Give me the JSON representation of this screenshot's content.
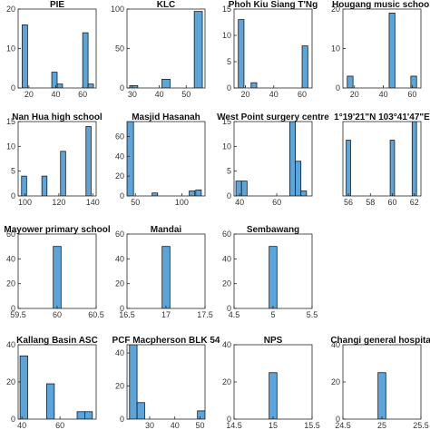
{
  "style": {
    "bar_fill": "#5aa5dc",
    "bar_stroke": "#1a1a1a",
    "axis_color": "#262626"
  },
  "chart_data": [
    {
      "type": "bar",
      "title": "PIE",
      "xlim": [
        12,
        70
      ],
      "ylim": [
        0,
        20
      ],
      "xticks": [
        "20",
        "40",
        "60"
      ],
      "xtick_values": [
        20,
        40,
        60
      ],
      "yticks": [
        "0",
        "10",
        "20"
      ],
      "ytick_values": [
        0,
        10,
        20
      ],
      "bins": [
        [
          15,
          19,
          16
        ],
        [
          37,
          41,
          4
        ],
        [
          41,
          45,
          1
        ],
        [
          60,
          64,
          14
        ],
        [
          64,
          68,
          1
        ]
      ]
    },
    {
      "type": "bar",
      "title": "KLC",
      "xlim": [
        28,
        57
      ],
      "ylim": [
        0,
        100
      ],
      "xticks": [
        "30",
        "40",
        "50"
      ],
      "xtick_values": [
        30,
        40,
        50
      ],
      "yticks": [
        "0",
        "50",
        "100"
      ],
      "ytick_values": [
        0,
        50,
        100
      ],
      "bins": [
        [
          29,
          32,
          3
        ],
        [
          41,
          44,
          11
        ],
        [
          53,
          56,
          97
        ]
      ]
    },
    {
      "type": "bar",
      "title": "Phoh Kiu Siang T'Ng",
      "xlim": [
        12,
        67
      ],
      "ylim": [
        0,
        15
      ],
      "xticks": [
        "20",
        "40",
        "60"
      ],
      "xtick_values": [
        20,
        40,
        60
      ],
      "yticks": [
        "0",
        "5",
        "10",
        "15"
      ],
      "ytick_values": [
        0,
        5,
        10,
        15
      ],
      "bins": [
        [
          15,
          19,
          13
        ],
        [
          24,
          28,
          1
        ],
        [
          60,
          64,
          8
        ]
      ]
    },
    {
      "type": "bar",
      "title": "Hougang music school",
      "xlim": [
        12,
        66
      ],
      "ylim": [
        0,
        20
      ],
      "xticks": [
        "20",
        "40",
        "60"
      ],
      "xtick_values": [
        20,
        40,
        60
      ],
      "yticks": [
        "0",
        "10",
        "20"
      ],
      "ytick_values": [
        0,
        10,
        20
      ],
      "bins": [
        [
          15,
          19,
          3
        ],
        [
          44,
          48,
          19
        ],
        [
          59,
          63,
          3
        ]
      ]
    },
    {
      "type": "bar",
      "title": "Nan Hua high school",
      "xlim": [
        96,
        142
      ],
      "ylim": [
        0,
        15
      ],
      "xticks": [
        "100",
        "120",
        "140"
      ],
      "xtick_values": [
        100,
        120,
        140
      ],
      "yticks": [
        "0",
        "5",
        "10",
        "15"
      ],
      "ytick_values": [
        0,
        5,
        10,
        15
      ],
      "bins": [
        [
          98,
          101,
          4
        ],
        [
          110,
          113,
          4
        ],
        [
          121,
          124,
          9
        ],
        [
          136,
          139,
          14
        ]
      ]
    },
    {
      "type": "bar",
      "title": "Masjid Hasanah",
      "xlim": [
        41,
        125
      ],
      "ylim": [
        0,
        75
      ],
      "xticks": [
        "50",
        "100"
      ],
      "xtick_values": [
        50,
        100
      ],
      "yticks": [
        "0",
        "20",
        "40",
        "60"
      ],
      "ytick_values": [
        0,
        20,
        40,
        60
      ],
      "bins": [
        [
          41,
          48,
          75
        ],
        [
          68,
          74,
          3
        ],
        [
          108,
          114,
          5
        ],
        [
          115,
          121,
          6
        ]
      ]
    },
    {
      "type": "bar",
      "title": "West Point surgery centre",
      "xlim": [
        37,
        79
      ],
      "ylim": [
        0,
        15
      ],
      "xticks": [
        "40",
        "60"
      ],
      "xtick_values": [
        40,
        60
      ],
      "yticks": [
        "0",
        "5",
        "10",
        "15"
      ],
      "ytick_values": [
        0,
        5,
        10,
        15
      ],
      "bins": [
        [
          38,
          41,
          3
        ],
        [
          41,
          44,
          3
        ],
        [
          67,
          70,
          15
        ],
        [
          70,
          73,
          7
        ],
        [
          73,
          76,
          1
        ]
      ]
    },
    {
      "type": "bar",
      "title": "1°19'21\"N 103°41'47\"E",
      "xlim": [
        55.5,
        62.6
      ],
      "ylim": [
        0,
        12
      ],
      "xticks": [
        "56",
        "58",
        "60",
        "62"
      ],
      "xtick_values": [
        56,
        58,
        60,
        62
      ],
      "yticks": [],
      "ytick_values": [],
      "bins": [
        [
          55.8,
          56.2,
          9
        ],
        [
          59.8,
          60.2,
          9
        ],
        [
          61.8,
          62.2,
          12
        ]
      ]
    },
    {
      "type": "bar",
      "title": "Mayower primary school",
      "xlim": [
        59.5,
        60.5
      ],
      "ylim": [
        0,
        60
      ],
      "xticks": [
        "59.5",
        "60",
        "60.5"
      ],
      "xtick_values": [
        59.5,
        60,
        60.5
      ],
      "yticks": [
        "0",
        "20",
        "40",
        "60"
      ],
      "ytick_values": [
        0,
        20,
        40,
        60
      ],
      "bins": [
        [
          59.95,
          60.05,
          50
        ]
      ]
    },
    {
      "type": "bar",
      "title": "Mandai",
      "xlim": [
        16.5,
        17.5
      ],
      "ylim": [
        0,
        60
      ],
      "xticks": [
        "16.5",
        "17",
        "17.5"
      ],
      "xtick_values": [
        16.5,
        17,
        17.5
      ],
      "yticks": [
        "0",
        "20",
        "40",
        "60"
      ],
      "ytick_values": [
        0,
        20,
        40,
        60
      ],
      "bins": [
        [
          16.95,
          17.05,
          50
        ]
      ]
    },
    {
      "type": "bar",
      "title": "Sembawang",
      "xlim": [
        4.5,
        5.5
      ],
      "ylim": [
        0,
        60
      ],
      "xticks": [
        "4.5",
        "5",
        "5.5"
      ],
      "xtick_values": [
        4.5,
        5,
        5.5
      ],
      "yticks": [
        "0",
        "20",
        "40",
        "60"
      ],
      "ytick_values": [
        0,
        20,
        40,
        60
      ],
      "bins": [
        [
          4.95,
          5.05,
          50
        ]
      ]
    },
    {
      "type": "bar",
      "title": "Kallang Basin ASC",
      "xlim": [
        38,
        79
      ],
      "ylim": [
        0,
        40
      ],
      "xticks": [
        "40",
        "60"
      ],
      "xtick_values": [
        40,
        60
      ],
      "yticks": [
        "0",
        "20",
        "40"
      ],
      "ytick_values": [
        0,
        20,
        40
      ],
      "bins": [
        [
          39,
          43,
          34
        ],
        [
          53,
          57,
          19
        ],
        [
          69,
          73,
          4
        ],
        [
          73,
          77,
          4
        ]
      ]
    },
    {
      "type": "bar",
      "title": "PCF Macpherson BLK 54",
      "xlim": [
        21,
        52
      ],
      "ylim": [
        0,
        45
      ],
      "xticks": [
        "30",
        "40",
        "50"
      ],
      "xtick_values": [
        30,
        40,
        50
      ],
      "yticks": [
        "0",
        "20",
        "40"
      ],
      "ytick_values": [
        0,
        20,
        40
      ],
      "bins": [
        [
          22,
          25,
          45
        ],
        [
          25,
          28,
          10
        ],
        [
          49,
          52,
          5
        ]
      ]
    },
    {
      "type": "bar",
      "title": "NPS",
      "xlim": [
        14.5,
        15.5
      ],
      "ylim": [
        0,
        40
      ],
      "xticks": [
        "14.5",
        "15",
        "15.5"
      ],
      "xtick_values": [
        14.5,
        15,
        15.5
      ],
      "yticks": [
        "0",
        "20",
        "40"
      ],
      "ytick_values": [
        0,
        20,
        40
      ],
      "bins": [
        [
          14.95,
          15.05,
          25
        ]
      ]
    },
    {
      "type": "bar",
      "title": "Changi general hospital",
      "xlim": [
        24.5,
        25.5
      ],
      "ylim": [
        0,
        40
      ],
      "xticks": [
        "24.5",
        "25",
        "25.5"
      ],
      "xtick_values": [
        24.5,
        25,
        25.5
      ],
      "yticks": [
        "0",
        "20",
        "40"
      ],
      "ytick_values": [
        0,
        20,
        40
      ],
      "bins": [
        [
          24.95,
          25.05,
          25
        ]
      ]
    }
  ]
}
